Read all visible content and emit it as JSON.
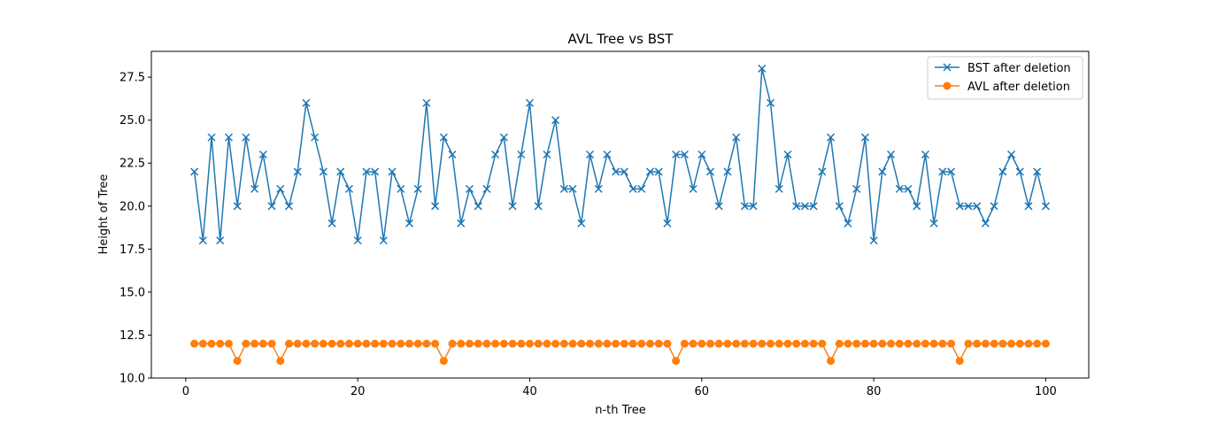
{
  "chart_data": {
    "type": "line",
    "title": "AVL Tree vs BST",
    "xlabel": "n-th Tree",
    "ylabel": "Height of Tree",
    "xlim": [
      -4,
      105
    ],
    "ylim": [
      10.0,
      29.0
    ],
    "xticks": [
      0,
      20,
      40,
      60,
      80,
      100
    ],
    "xtick_labels": [
      "0",
      "20",
      "40",
      "60",
      "80",
      "100"
    ],
    "yticks": [
      10.0,
      12.5,
      15.0,
      17.5,
      20.0,
      22.5,
      25.0,
      27.5
    ],
    "ytick_labels": [
      "10.0",
      "12.5",
      "15.0",
      "17.5",
      "20.0",
      "22.5",
      "25.0",
      "27.5"
    ],
    "grid": false,
    "legend_position": "top-right",
    "x": [
      1,
      2,
      3,
      4,
      5,
      6,
      7,
      8,
      9,
      10,
      11,
      12,
      13,
      14,
      15,
      16,
      17,
      18,
      19,
      20,
      21,
      22,
      23,
      24,
      25,
      26,
      27,
      28,
      29,
      30,
      31,
      32,
      33,
      34,
      35,
      36,
      37,
      38,
      39,
      40,
      41,
      42,
      43,
      44,
      45,
      46,
      47,
      48,
      49,
      50,
      51,
      52,
      53,
      54,
      55,
      56,
      57,
      58,
      59,
      60,
      61,
      62,
      63,
      64,
      65,
      66,
      67,
      68,
      69,
      70,
      71,
      72,
      73,
      74,
      75,
      76,
      77,
      78,
      79,
      80,
      81,
      82,
      83,
      84,
      85,
      86,
      87,
      88,
      89,
      90,
      91,
      92,
      93,
      94,
      95,
      96,
      97,
      98,
      99,
      100
    ],
    "series": [
      {
        "name": "BST after deletion",
        "color": "#1f77b4",
        "marker": "x",
        "values": [
          22,
          18,
          24,
          18,
          24,
          20,
          24,
          21,
          23,
          20,
          21,
          20,
          22,
          26,
          24,
          22,
          19,
          22,
          21,
          18,
          22,
          22,
          18,
          22,
          21,
          19,
          21,
          26,
          20,
          24,
          23,
          19,
          21,
          20,
          21,
          23,
          24,
          20,
          23,
          26,
          20,
          23,
          25,
          21,
          21,
          19,
          23,
          21,
          23,
          22,
          22,
          21,
          21,
          22,
          22,
          19,
          23,
          23,
          21,
          23,
          22,
          20,
          22,
          24,
          20,
          20,
          28,
          26,
          21,
          23,
          20,
          20,
          20,
          22,
          24,
          20,
          19,
          21,
          24,
          18,
          22,
          23,
          21,
          21,
          20,
          23,
          19,
          22,
          22,
          20,
          20,
          20,
          19,
          20,
          22,
          23,
          22,
          20,
          22,
          20
        ]
      },
      {
        "name": "AVL after deletion",
        "color": "#ff7f0e",
        "marker": "o",
        "values": [
          12,
          12,
          12,
          12,
          12,
          11,
          12,
          12,
          12,
          12,
          11,
          12,
          12,
          12,
          12,
          12,
          12,
          12,
          12,
          12,
          12,
          12,
          12,
          12,
          12,
          12,
          12,
          12,
          12,
          11,
          12,
          12,
          12,
          12,
          12,
          12,
          12,
          12,
          12,
          12,
          12,
          12,
          12,
          12,
          12,
          12,
          12,
          12,
          12,
          12,
          12,
          12,
          12,
          12,
          12,
          12,
          11,
          12,
          12,
          12,
          12,
          12,
          12,
          12,
          12,
          12,
          12,
          12,
          12,
          12,
          12,
          12,
          12,
          12,
          11,
          12,
          12,
          12,
          12,
          12,
          12,
          12,
          12,
          12,
          12,
          12,
          12,
          12,
          12,
          11,
          12,
          12,
          12,
          12,
          12,
          12,
          12,
          12,
          12,
          12
        ]
      }
    ]
  }
}
